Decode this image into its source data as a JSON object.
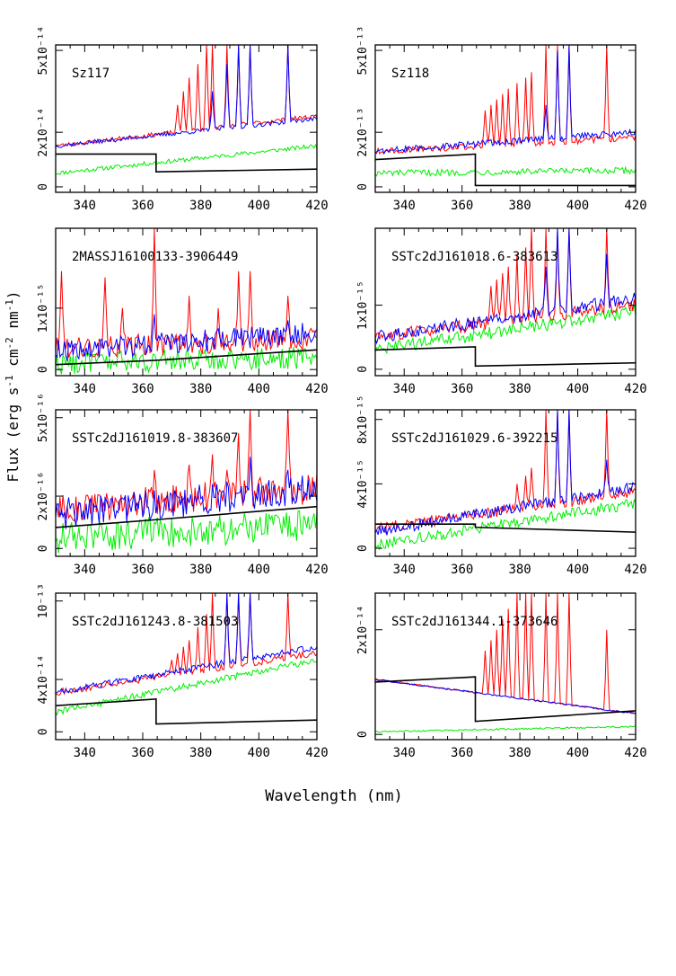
{
  "figure": {
    "xlabel": "Wavelength (nm)",
    "ylabel_parts": [
      "Flux (erg s",
      "-1",
      " cm",
      "-2",
      " nm",
      "-1",
      ")"
    ]
  },
  "chart_data": [
    {
      "type": "line",
      "title": "Sz117",
      "xlim": [
        330,
        420
      ],
      "ylim": [
        -0.2,
        5.2
      ],
      "ytick_values": [
        0,
        2,
        5
      ],
      "ytick_labels": [
        "0",
        "2x10⁻¹⁴",
        "5x10⁻¹⁴"
      ],
      "xtick_values": [
        340,
        360,
        380,
        400,
        420
      ],
      "xtick_labels": [
        "340",
        "360",
        "380",
        "400",
        "420"
      ],
      "xlabel": "Wavelength (nm)",
      "ylabel": "Flux (erg s⁻¹ cm⁻² nm⁻¹)",
      "lines": {
        "red_base": [
          1.5,
          2.6
        ],
        "blue_base": [
          1.5,
          2.5
        ],
        "green_base": [
          0.5,
          1.5
        ],
        "red_peaks": [
          372,
          374,
          376,
          379,
          382,
          384,
          389,
          393,
          397,
          410
        ],
        "red_peak_heights": [
          3.0,
          3.5,
          4.0,
          4.5,
          5.2,
          5.2,
          5.2,
          5.2,
          5.2,
          5.2
        ],
        "blue_peaks": [
          384,
          389,
          393,
          397,
          410
        ],
        "blue_peak_heights": [
          3.5,
          4.5,
          5.2,
          5.2,
          5.2
        ],
        "model_left": [
          1.2,
          1.2
        ],
        "model_right": [
          0.55,
          0.65
        ],
        "noise": 0.08,
        "model_break": 364.6
      },
      "series": [
        {
          "name": "red spectrum",
          "color": "#ff0000"
        },
        {
          "name": "blue spectrum",
          "color": "#0000ff"
        },
        {
          "name": "green spectrum",
          "color": "#00ee00"
        },
        {
          "name": "model",
          "color": "#000000"
        }
      ]
    },
    {
      "type": "line",
      "title": "Sz118",
      "xlim": [
        330,
        420
      ],
      "ylim": [
        -0.2,
        5.2
      ],
      "ytick_values": [
        0,
        2,
        5
      ],
      "ytick_labels": [
        "0",
        "2x10⁻¹³",
        "5x10⁻¹³"
      ],
      "xtick_values": [
        340,
        360,
        380,
        400,
        420
      ],
      "xtick_labels": [
        "340",
        "360",
        "380",
        "400",
        "420"
      ],
      "xlabel": "Wavelength (nm)",
      "ylabel": "Flux (erg s⁻¹ cm⁻² nm⁻¹)",
      "lines": {
        "red_base": [
          1.3,
          1.8
        ],
        "blue_base": [
          1.3,
          2.0
        ],
        "green_base": [
          0.5,
          0.6
        ],
        "red_peaks": [
          368,
          370,
          372,
          374,
          376,
          379,
          382,
          384,
          389,
          393,
          397,
          410
        ],
        "red_peak_heights": [
          2.8,
          3.0,
          3.2,
          3.4,
          3.6,
          3.8,
          4.0,
          4.2,
          5.2,
          5.2,
          5.2,
          5.2
        ],
        "blue_peaks": [
          389,
          393,
          397
        ],
        "blue_peak_heights": [
          3.0,
          5.0,
          5.2
        ],
        "model_left": [
          1.0,
          1.2
        ],
        "model_right": [
          0.05,
          0.05
        ],
        "noise": 0.12,
        "model_break": 364.6
      },
      "series": [
        {
          "name": "red spectrum",
          "color": "#ff0000"
        },
        {
          "name": "blue spectrum",
          "color": "#0000ff"
        },
        {
          "name": "green spectrum",
          "color": "#00ee00"
        },
        {
          "name": "model",
          "color": "#000000"
        }
      ]
    },
    {
      "type": "line",
      "title": "2MASSJ16100133-3906449",
      "xlim": [
        330,
        420
      ],
      "ylim": [
        -0.1,
        2.3
      ],
      "ytick_values": [
        0,
        1
      ],
      "ytick_labels": [
        "0",
        "1x10⁻¹⁵"
      ],
      "xtick_values": [
        340,
        360,
        380,
        400,
        420
      ],
      "xtick_labels": [
        "340",
        "360",
        "380",
        "400",
        "420"
      ],
      "xlabel": "Wavelength (nm)",
      "ylabel": "Flux (erg s⁻¹ cm⁻² nm⁻¹)",
      "lines": {
        "red_base": [
          0.35,
          0.5
        ],
        "blue_base": [
          0.3,
          0.6
        ],
        "green_base": [
          0.1,
          0.2
        ],
        "red_peaks": [
          332,
          347,
          353,
          364,
          376,
          386,
          393,
          397,
          410
        ],
        "red_peak_heights": [
          1.6,
          1.5,
          1.0,
          2.3,
          1.2,
          1.0,
          1.6,
          1.6,
          1.2
        ],
        "blue_peaks": [
          364,
          410
        ],
        "blue_peak_heights": [
          0.9,
          0.8
        ],
        "model_left": [
          0.08,
          0.15
        ],
        "model_right": [
          0.15,
          0.32
        ],
        "noise": 0.18,
        "model_break": 364.6
      },
      "series": [
        {
          "name": "red spectrum",
          "color": "#ff0000"
        },
        {
          "name": "blue spectrum",
          "color": "#0000ff"
        },
        {
          "name": "green spectrum",
          "color": "#00ee00"
        },
        {
          "name": "model",
          "color": "#000000"
        }
      ]
    },
    {
      "type": "line",
      "title": "SSTc2dJ161018.6-383613",
      "xlim": [
        330,
        420
      ],
      "ylim": [
        -0.1,
        2.2
      ],
      "ytick_values": [
        0,
        1
      ],
      "ytick_labels": [
        "0",
        "1x10⁻¹⁵"
      ],
      "xtick_values": [
        340,
        360,
        380,
        400,
        420
      ],
      "xtick_labels": [
        "340",
        "360",
        "380",
        "400",
        "420"
      ],
      "xlabel": "Wavelength (nm)",
      "ylabel": "Flux (erg s⁻¹ cm⁻² nm⁻¹)",
      "lines": {
        "red_base": [
          0.5,
          1.0
        ],
        "blue_base": [
          0.5,
          1.1
        ],
        "green_base": [
          0.3,
          0.9
        ],
        "red_peaks": [
          370,
          372,
          374,
          376,
          379,
          382,
          384,
          389,
          393,
          397,
          410
        ],
        "red_peak_heights": [
          1.3,
          1.4,
          1.5,
          1.6,
          1.8,
          1.9,
          2.2,
          2.2,
          2.2,
          2.2,
          2.2
        ],
        "blue_peaks": [
          389,
          393,
          397,
          410
        ],
        "blue_peak_heights": [
          1.6,
          2.2,
          2.2,
          1.8
        ],
        "model_left": [
          0.3,
          0.35
        ],
        "model_right": [
          0.05,
          0.1
        ],
        "noise": 0.1,
        "model_break": 364.6
      },
      "series": [
        {
          "name": "red spectrum",
          "color": "#ff0000"
        },
        {
          "name": "blue spectrum",
          "color": "#0000ff"
        },
        {
          "name": "green spectrum",
          "color": "#00ee00"
        },
        {
          "name": "model",
          "color": "#000000"
        }
      ]
    },
    {
      "type": "line",
      "title": "SSTc2dJ161019.8-383607",
      "xlim": [
        330,
        420
      ],
      "ylim": [
        -0.3,
        5.3
      ],
      "ytick_values": [
        0,
        2,
        5
      ],
      "ytick_labels": [
        "0",
        "2x10⁻¹⁶",
        "5x10⁻¹⁶"
      ],
      "xtick_values": [
        340,
        360,
        380,
        400,
        420
      ],
      "xtick_labels": [
        "340",
        "360",
        "380",
        "400",
        "420"
      ],
      "xlabel": "Wavelength (nm)",
      "ylabel": "Flux (erg s⁻¹ cm⁻² nm⁻¹)",
      "lines": {
        "red_base": [
          1.5,
          2.3
        ],
        "blue_base": [
          1.3,
          2.3
        ],
        "green_base": [
          0.4,
          0.9
        ],
        "red_peaks": [
          364,
          376,
          384,
          389,
          393,
          397,
          410
        ],
        "red_peak_heights": [
          3.0,
          3.2,
          3.6,
          3.0,
          4.4,
          5.3,
          5.3
        ],
        "blue_peaks": [
          397,
          410
        ],
        "blue_peak_heights": [
          3.5,
          3.0
        ],
        "model_left": [
          0.8,
          1.1
        ],
        "model_right": [
          1.1,
          1.6
        ],
        "noise": 0.6,
        "model_break": 364.6
      },
      "series": [
        {
          "name": "red spectrum",
          "color": "#ff0000"
        },
        {
          "name": "blue spectrum",
          "color": "#0000ff"
        },
        {
          "name": "green spectrum",
          "color": "#00ee00"
        },
        {
          "name": "model",
          "color": "#000000"
        }
      ]
    },
    {
      "type": "line",
      "title": "SSTc2dJ161029.6-392215",
      "xlim": [
        330,
        420
      ],
      "ylim": [
        -0.5,
        8.6
      ],
      "ytick_values": [
        0,
        4,
        8
      ],
      "ytick_labels": [
        "0",
        "4x10⁻¹⁵",
        "8x10⁻¹⁵"
      ],
      "xtick_values": [
        340,
        360,
        380,
        400,
        420
      ],
      "xtick_labels": [
        "340",
        "360",
        "380",
        "400",
        "420"
      ],
      "xlabel": "Wavelength (nm)",
      "ylabel": "Flux (erg s⁻¹ cm⁻² nm⁻¹)",
      "lines": {
        "red_base": [
          1.2,
          3.5
        ],
        "blue_base": [
          1.0,
          3.8
        ],
        "green_base": [
          0.2,
          2.8
        ],
        "red_peaks": [
          379,
          382,
          384,
          389,
          393,
          397,
          410
        ],
        "red_peak_heights": [
          4.0,
          4.5,
          5.0,
          8.6,
          8.6,
          8.6,
          8.6
        ],
        "blue_peaks": [
          393,
          397,
          410
        ],
        "blue_peak_heights": [
          8.6,
          8.6,
          5.5
        ],
        "model_left": [
          1.5,
          1.5
        ],
        "model_right": [
          1.3,
          1.0
        ],
        "noise": 0.35,
        "model_break": 364.6
      },
      "series": [
        {
          "name": "red spectrum",
          "color": "#ff0000"
        },
        {
          "name": "blue spectrum",
          "color": "#0000ff"
        },
        {
          "name": "green spectrum",
          "color": "#00ee00"
        },
        {
          "name": "model",
          "color": "#000000"
        }
      ]
    },
    {
      "type": "line",
      "title": "SSTc2dJ161243.8-381503",
      "xlim": [
        330,
        420
      ],
      "ylim": [
        -0.6,
        10.6
      ],
      "ytick_values": [
        0,
        4,
        10
      ],
      "ytick_labels": [
        "0",
        "4x10⁻¹⁴",
        "10⁻¹³"
      ],
      "xtick_values": [
        340,
        360,
        380,
        400,
        420
      ],
      "xtick_labels": [
        "340",
        "360",
        "380",
        "400",
        "420"
      ],
      "xlabel": "Wavelength (nm)",
      "ylabel": "Flux (erg s⁻¹ cm⁻² nm⁻¹)",
      "lines": {
        "red_base": [
          3.0,
          6.0
        ],
        "blue_base": [
          3.0,
          6.5
        ],
        "green_base": [
          1.5,
          5.5
        ],
        "red_peaks": [
          370,
          372,
          374,
          376,
          379,
          382,
          384,
          389,
          393,
          397,
          410
        ],
        "red_peak_heights": [
          5.5,
          6.0,
          6.5,
          7.0,
          8.0,
          9.0,
          10.6,
          10.6,
          10.6,
          10.6,
          10.6
        ],
        "blue_peaks": [
          389,
          393,
          397
        ],
        "blue_peak_heights": [
          10.6,
          10.6,
          10.6
        ],
        "model_left": [
          2.0,
          2.5
        ],
        "model_right": [
          0.6,
          0.9
        ],
        "noise": 0.25,
        "model_break": 364.6
      },
      "series": [
        {
          "name": "red spectrum",
          "color": "#ff0000"
        },
        {
          "name": "blue spectrum",
          "color": "#0000ff"
        },
        {
          "name": "green spectrum",
          "color": "#00ee00"
        },
        {
          "name": "model",
          "color": "#000000"
        }
      ]
    },
    {
      "type": "line",
      "title": "SSTc2dJ161344.1-373646",
      "xlim": [
        330,
        420
      ],
      "ylim": [
        -0.1,
        2.7
      ],
      "ytick_values": [
        0,
        2
      ],
      "ytick_labels": [
        "0",
        "2x10⁻¹⁴"
      ],
      "xtick_values": [
        340,
        360,
        380,
        400,
        420
      ],
      "xtick_labels": [
        "340",
        "360",
        "380",
        "400",
        "420"
      ],
      "xlabel": "Wavelength (nm)",
      "ylabel": "Flux (erg s⁻¹ cm⁻² nm⁻¹)",
      "lines": {
        "red_base": [
          1.05,
          0.4
        ],
        "blue_base": [
          1.05,
          0.4
        ],
        "green_base": [
          0.05,
          0.15
        ],
        "red_peaks": [
          368,
          370,
          372,
          374,
          376,
          379,
          382,
          384,
          389,
          393,
          397,
          410
        ],
        "red_peak_heights": [
          1.6,
          1.8,
          2.0,
          2.2,
          2.4,
          2.7,
          2.7,
          2.7,
          2.7,
          2.7,
          2.7,
          2.0
        ],
        "blue_peaks": [],
        "blue_peak_heights": [],
        "model_left": [
          1.0,
          1.1
        ],
        "model_right": [
          0.25,
          0.45
        ],
        "noise": 0.015,
        "model_break": 364.6
      },
      "series": [
        {
          "name": "red spectrum",
          "color": "#ff0000"
        },
        {
          "name": "blue spectrum",
          "color": "#0000ff"
        },
        {
          "name": "green spectrum",
          "color": "#00ee00"
        },
        {
          "name": "model",
          "color": "#000000"
        }
      ]
    }
  ]
}
